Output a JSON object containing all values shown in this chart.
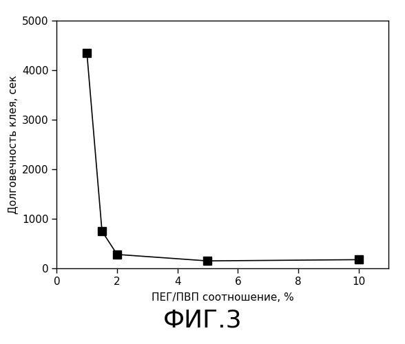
{
  "x": [
    1,
    1.5,
    2,
    5,
    10
  ],
  "y": [
    4350,
    750,
    280,
    150,
    175
  ],
  "xlim": [
    0,
    11
  ],
  "ylim": [
    0,
    5000
  ],
  "xticks": [
    0,
    2,
    4,
    6,
    8,
    10
  ],
  "yticks": [
    0,
    1000,
    2000,
    3000,
    4000,
    5000
  ],
  "xlabel": "ПЕГ/ПВП соотношение, %",
  "ylabel": "Долговечность клея, сек",
  "figure_label": "ФИГ.3",
  "line_color": "#000000",
  "marker_color": "#000000",
  "background_color": "#ffffff",
  "marker": "s",
  "marker_size": 9,
  "line_width": 1.2,
  "tick_fontsize": 11,
  "label_fontsize": 11,
  "figlabel_fontsize": 26
}
